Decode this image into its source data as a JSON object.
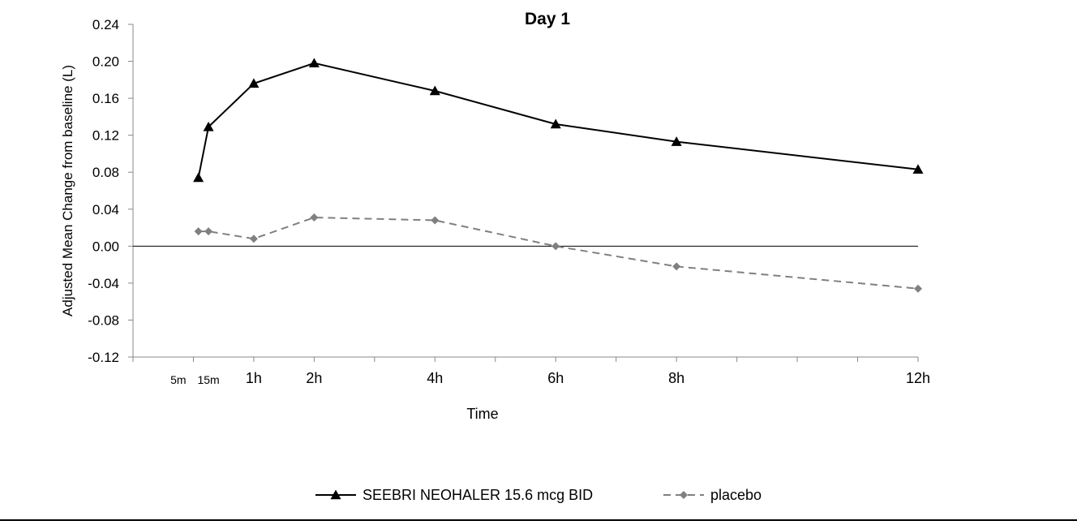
{
  "chart_data": {
    "type": "line",
    "title": "Day 1",
    "xlabel": "Time",
    "ylabel": "Adjusted Mean Change from baseline (L)",
    "ylim": [
      -0.12,
      0.24
    ],
    "yticks": [
      "-0.12",
      "-0.08",
      "-0.04",
      "0.00",
      "0.04",
      "0.08",
      "0.12",
      "0.16",
      "0.20",
      "0.24"
    ],
    "x_unit": "hours",
    "xlim": [
      -1,
      12
    ],
    "xtick_labels": [
      {
        "x": -0.25,
        "label": "5m",
        "small": true
      },
      {
        "x": 0.25,
        "label": "15m",
        "small": true
      },
      {
        "x": 1,
        "label": "1h"
      },
      {
        "x": 2,
        "label": "2h"
      },
      {
        "x": 4,
        "label": "4h"
      },
      {
        "x": 6,
        "label": "6h"
      },
      {
        "x": 8,
        "label": "8h"
      },
      {
        "x": 12,
        "label": "12h"
      }
    ],
    "x": [
      0.083,
      0.25,
      1,
      2,
      4,
      6,
      8,
      12
    ],
    "series": [
      {
        "name": "SEEBRI NEOHALER 15.6 mcg BID",
        "color": "#000000",
        "marker": "triangle",
        "dash": "solid",
        "values": [
          0.074,
          0.129,
          0.176,
          0.198,
          0.168,
          0.132,
          0.113,
          0.083
        ]
      },
      {
        "name": "placebo",
        "color": "#808080",
        "marker": "diamond",
        "dash": "dashed",
        "values": [
          0.016,
          0.016,
          0.008,
          0.031,
          0.028,
          0.0,
          -0.022,
          -0.046
        ]
      }
    ],
    "zero_line": true,
    "grid": false,
    "legend_position": "bottom-center"
  }
}
